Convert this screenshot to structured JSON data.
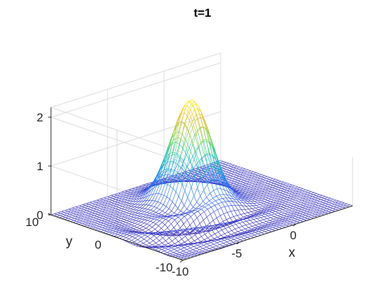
{
  "chart_data": {
    "type": "surface",
    "title": "t=1",
    "xlabel": "x",
    "ylabel": "y",
    "zlabel": "",
    "xlim": [
      -10,
      5
    ],
    "ylim": [
      -10,
      10
    ],
    "zlim": [
      0,
      2
    ],
    "xticks": [
      {
        "value": -10,
        "label": "-10"
      },
      {
        "value": -5,
        "label": "-5"
      },
      {
        "value": 0,
        "label": "0"
      }
    ],
    "yticks": [
      {
        "value": -10,
        "label": "-10"
      },
      {
        "value": 0,
        "label": "0"
      },
      {
        "value": 10,
        "label": "10"
      }
    ],
    "zticks": [
      {
        "value": 0,
        "label": "0"
      },
      {
        "value": 1,
        "label": "1"
      },
      {
        "value": 2,
        "label": "2"
      }
    ],
    "grid": true,
    "colormap": "parula",
    "colormap_stops": [
      "#3e26a8",
      "#2f5ff7",
      "#1a9fe0",
      "#23c8a2",
      "#89d248",
      "#e8ba30",
      "#f9fb15"
    ],
    "peak": {
      "x": -2,
      "y": 2.5,
      "z": 2.1
    },
    "ripples": "small oscillations trailing toward negative x and negative y",
    "mesh_lines": 48
  }
}
